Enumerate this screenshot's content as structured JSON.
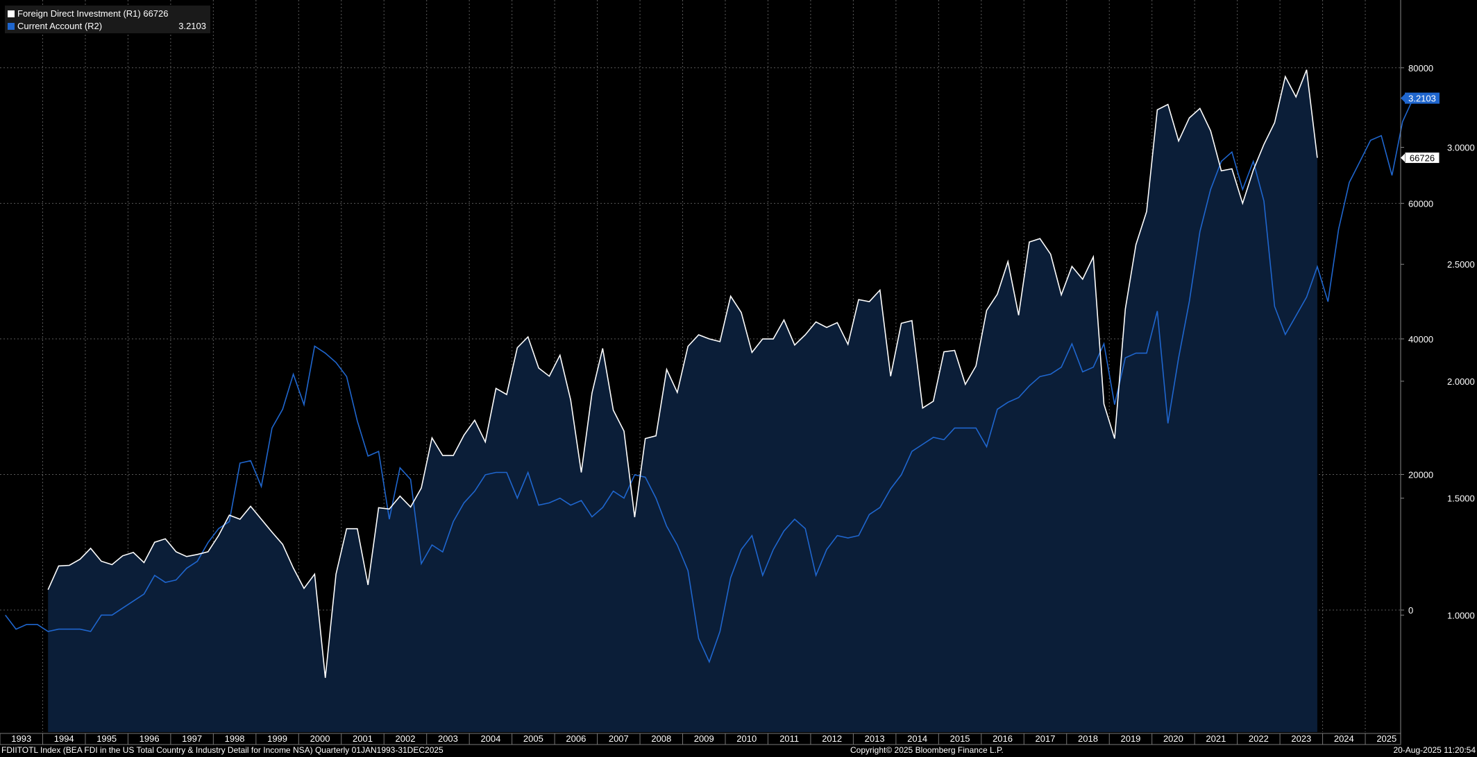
{
  "legend": {
    "series1_label": "Foreign Direct Investment  (R1) 66726",
    "series2_label": "Current Account  (R2)",
    "series2_value": "3.2103"
  },
  "footer": {
    "ticker": "FDIITOTL Index (BEA FDI in the US Total Country & Industry Detail for Income NSA)  Quarterly 01JAN1993-31DEC2025",
    "copyright": "Copyright© 2025 Bloomberg Finance L.P.",
    "timestamp": "20-Aug-2025 11:20:54"
  },
  "colors": {
    "background": "#000000",
    "fdi_line": "#ffffff",
    "fdi_fill": "#0b1e38",
    "ca_line": "#1f66ce",
    "badge_blue": "#1f66ce",
    "grid": "#5a5a5a"
  },
  "chart_data": {
    "type": "line",
    "x_axis": {
      "type": "time",
      "quarters_from": "1993Q1",
      "tick_labels": [
        "1993",
        "1994",
        "1995",
        "1996",
        "1997",
        "1998",
        "1999",
        "2000",
        "2001",
        "2002",
        "2003",
        "2004",
        "2005",
        "2006",
        "2007",
        "2008",
        "2009",
        "2010",
        "2011",
        "2012",
        "2013",
        "2014",
        "2015",
        "2016",
        "2017",
        "2018",
        "2019",
        "2020",
        "2021",
        "2022",
        "2023",
        "2024",
        "2025"
      ]
    },
    "y_left": {
      "ticks": [
        "0",
        "20000",
        "40000",
        "60000",
        "80000"
      ],
      "range": [
        -18000,
        90000
      ]
    },
    "y_right": {
      "ticks": [
        "1.0000",
        "1.5000",
        "2.0000",
        "2.5000",
        "3.0000"
      ],
      "range": [
        0.5,
        3.63
      ]
    },
    "grid": true,
    "legend_position": "top-left",
    "series": [
      {
        "name": "Foreign Direct Investment  (R1)",
        "axis": "left",
        "start_quarter": "1994Q1",
        "last_value_label": "66726",
        "values": [
          3000,
          6500,
          6600,
          7500,
          9100,
          7200,
          6700,
          8000,
          8500,
          7000,
          10000,
          10500,
          8600,
          7900,
          8200,
          8600,
          11000,
          14000,
          13400,
          15300,
          13400,
          11500,
          9700,
          6200,
          3200,
          5300,
          -10000,
          5300,
          12000,
          12000,
          3700,
          15100,
          14900,
          16800,
          15200,
          18000,
          25400,
          22800,
          22800,
          25800,
          28000,
          24800,
          32700,
          31800,
          38700,
          40300,
          35700,
          34500,
          37600,
          31000,
          20300,
          32000,
          38600,
          29500,
          26400,
          13700,
          25300,
          25700,
          35500,
          32100,
          38900,
          40600,
          40000,
          39600,
          46300,
          43900,
          38000,
          40000,
          40000,
          42800,
          39100,
          40600,
          42500,
          41700,
          42400,
          39200,
          45800,
          45500,
          47200,
          34500,
          42300,
          42700,
          29800,
          30800,
          38100,
          38300,
          33300,
          36000,
          44200,
          46600,
          51400,
          43500,
          54300,
          54800,
          52500,
          46500,
          50700,
          48800,
          52100,
          30400,
          25300,
          44400,
          53900,
          58800,
          73800,
          74600,
          69200,
          72600,
          74000,
          70700,
          64800,
          65100,
          60000,
          64900,
          68700,
          71900,
          78700,
          75700,
          79700,
          66726
        ]
      },
      {
        "name": "Current Account  (R2)",
        "axis": "right",
        "start_quarter": "1993Q1",
        "last_value_label": "3.2103",
        "values": [
          1.0,
          0.94,
          0.96,
          0.96,
          0.93,
          0.94,
          0.94,
          0.94,
          0.93,
          1.0,
          1.0,
          1.03,
          1.06,
          1.09,
          1.17,
          1.14,
          1.15,
          1.2,
          1.23,
          1.31,
          1.37,
          1.4,
          1.65,
          1.66,
          1.55,
          1.8,
          1.88,
          2.03,
          1.9,
          2.15,
          2.12,
          2.08,
          2.02,
          1.83,
          1.68,
          1.7,
          1.41,
          1.63,
          1.58,
          1.22,
          1.3,
          1.27,
          1.4,
          1.48,
          1.53,
          1.6,
          1.61,
          1.61,
          1.5,
          1.61,
          1.47,
          1.48,
          1.5,
          1.47,
          1.49,
          1.42,
          1.46,
          1.53,
          1.5,
          1.6,
          1.59,
          1.5,
          1.38,
          1.3,
          1.19,
          0.9,
          0.8,
          0.93,
          1.16,
          1.28,
          1.34,
          1.17,
          1.28,
          1.36,
          1.41,
          1.37,
          1.17,
          1.28,
          1.34,
          1.33,
          1.34,
          1.43,
          1.46,
          1.54,
          1.6,
          1.7,
          1.73,
          1.76,
          1.75,
          1.8,
          1.8,
          1.8,
          1.72,
          1.88,
          1.91,
          1.93,
          1.98,
          2.02,
          2.03,
          2.06,
          2.16,
          2.04,
          2.06,
          2.16,
          1.9,
          2.1,
          2.12,
          2.12,
          2.3,
          1.82,
          2.1,
          2.34,
          2.64,
          2.82,
          2.94,
          2.98,
          2.82,
          2.94,
          2.77,
          2.32,
          2.2,
          2.28,
          2.36,
          2.49,
          2.34,
          2.65,
          2.85,
          2.94,
          3.03,
          3.05,
          2.88,
          3.11,
          3.2103
        ]
      }
    ]
  }
}
